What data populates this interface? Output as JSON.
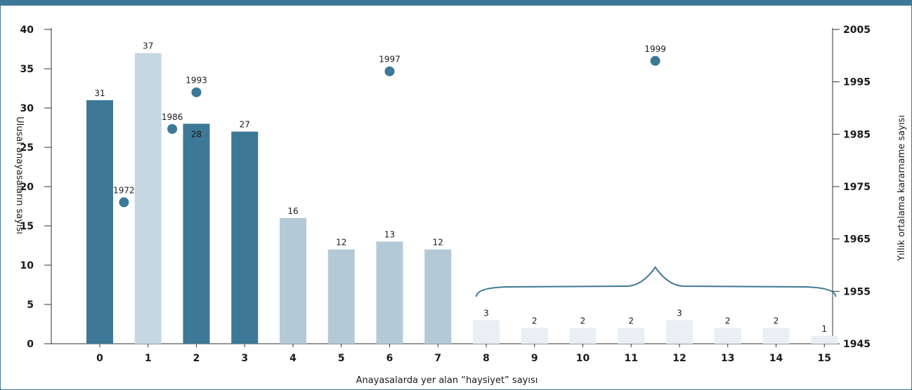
{
  "chart_data": {
    "type": "bar",
    "title": "",
    "xlabel": "Anayasalarda yer alan “haysiyet” sayısı",
    "ylabel": "Ulusal anayasaların sayısı",
    "ylabel_right": "Yıllık ortalama kararname sayısı",
    "ylim": [
      0,
      40
    ],
    "yticks": [
      0,
      5,
      10,
      15,
      20,
      25,
      30,
      35,
      40
    ],
    "ylim_right": [
      1945,
      2005
    ],
    "yticks_right": [
      1945,
      1955,
      1965,
      1975,
      1985,
      1995,
      2005
    ],
    "categories": [
      "0",
      "1",
      "2",
      "3",
      "4",
      "5",
      "6",
      "7",
      "8",
      "9",
      "10",
      "11",
      "12",
      "13",
      "14",
      "15"
    ],
    "values": [
      31,
      37,
      28,
      27,
      16,
      12,
      13,
      12,
      3,
      2,
      2,
      2,
      3,
      2,
      2,
      1
    ],
    "bar_colors": [
      "#3d7896",
      "#c5d8e2",
      "#3d7896",
      "#3d7896",
      "#b3cad6",
      "#b3cad6",
      "#b3cad6",
      "#b3cad6",
      "#e9eff3",
      "#e9eff3",
      "#e9eff3",
      "#e9eff3",
      "#e9eff3",
      "#e9eff3",
      "#e9eff3",
      "#e9eff3"
    ],
    "points": [
      {
        "x": 0.5,
        "year": 1972
      },
      {
        "x": 1.5,
        "year": 1986
      },
      {
        "x": 2,
        "year": 1993
      },
      {
        "x": 6,
        "year": 1997
      },
      {
        "x": 11.5,
        "year": 1999
      }
    ],
    "point_color": "#3d7896",
    "brace_group": [
      "8",
      "15"
    ],
    "grid": false
  }
}
